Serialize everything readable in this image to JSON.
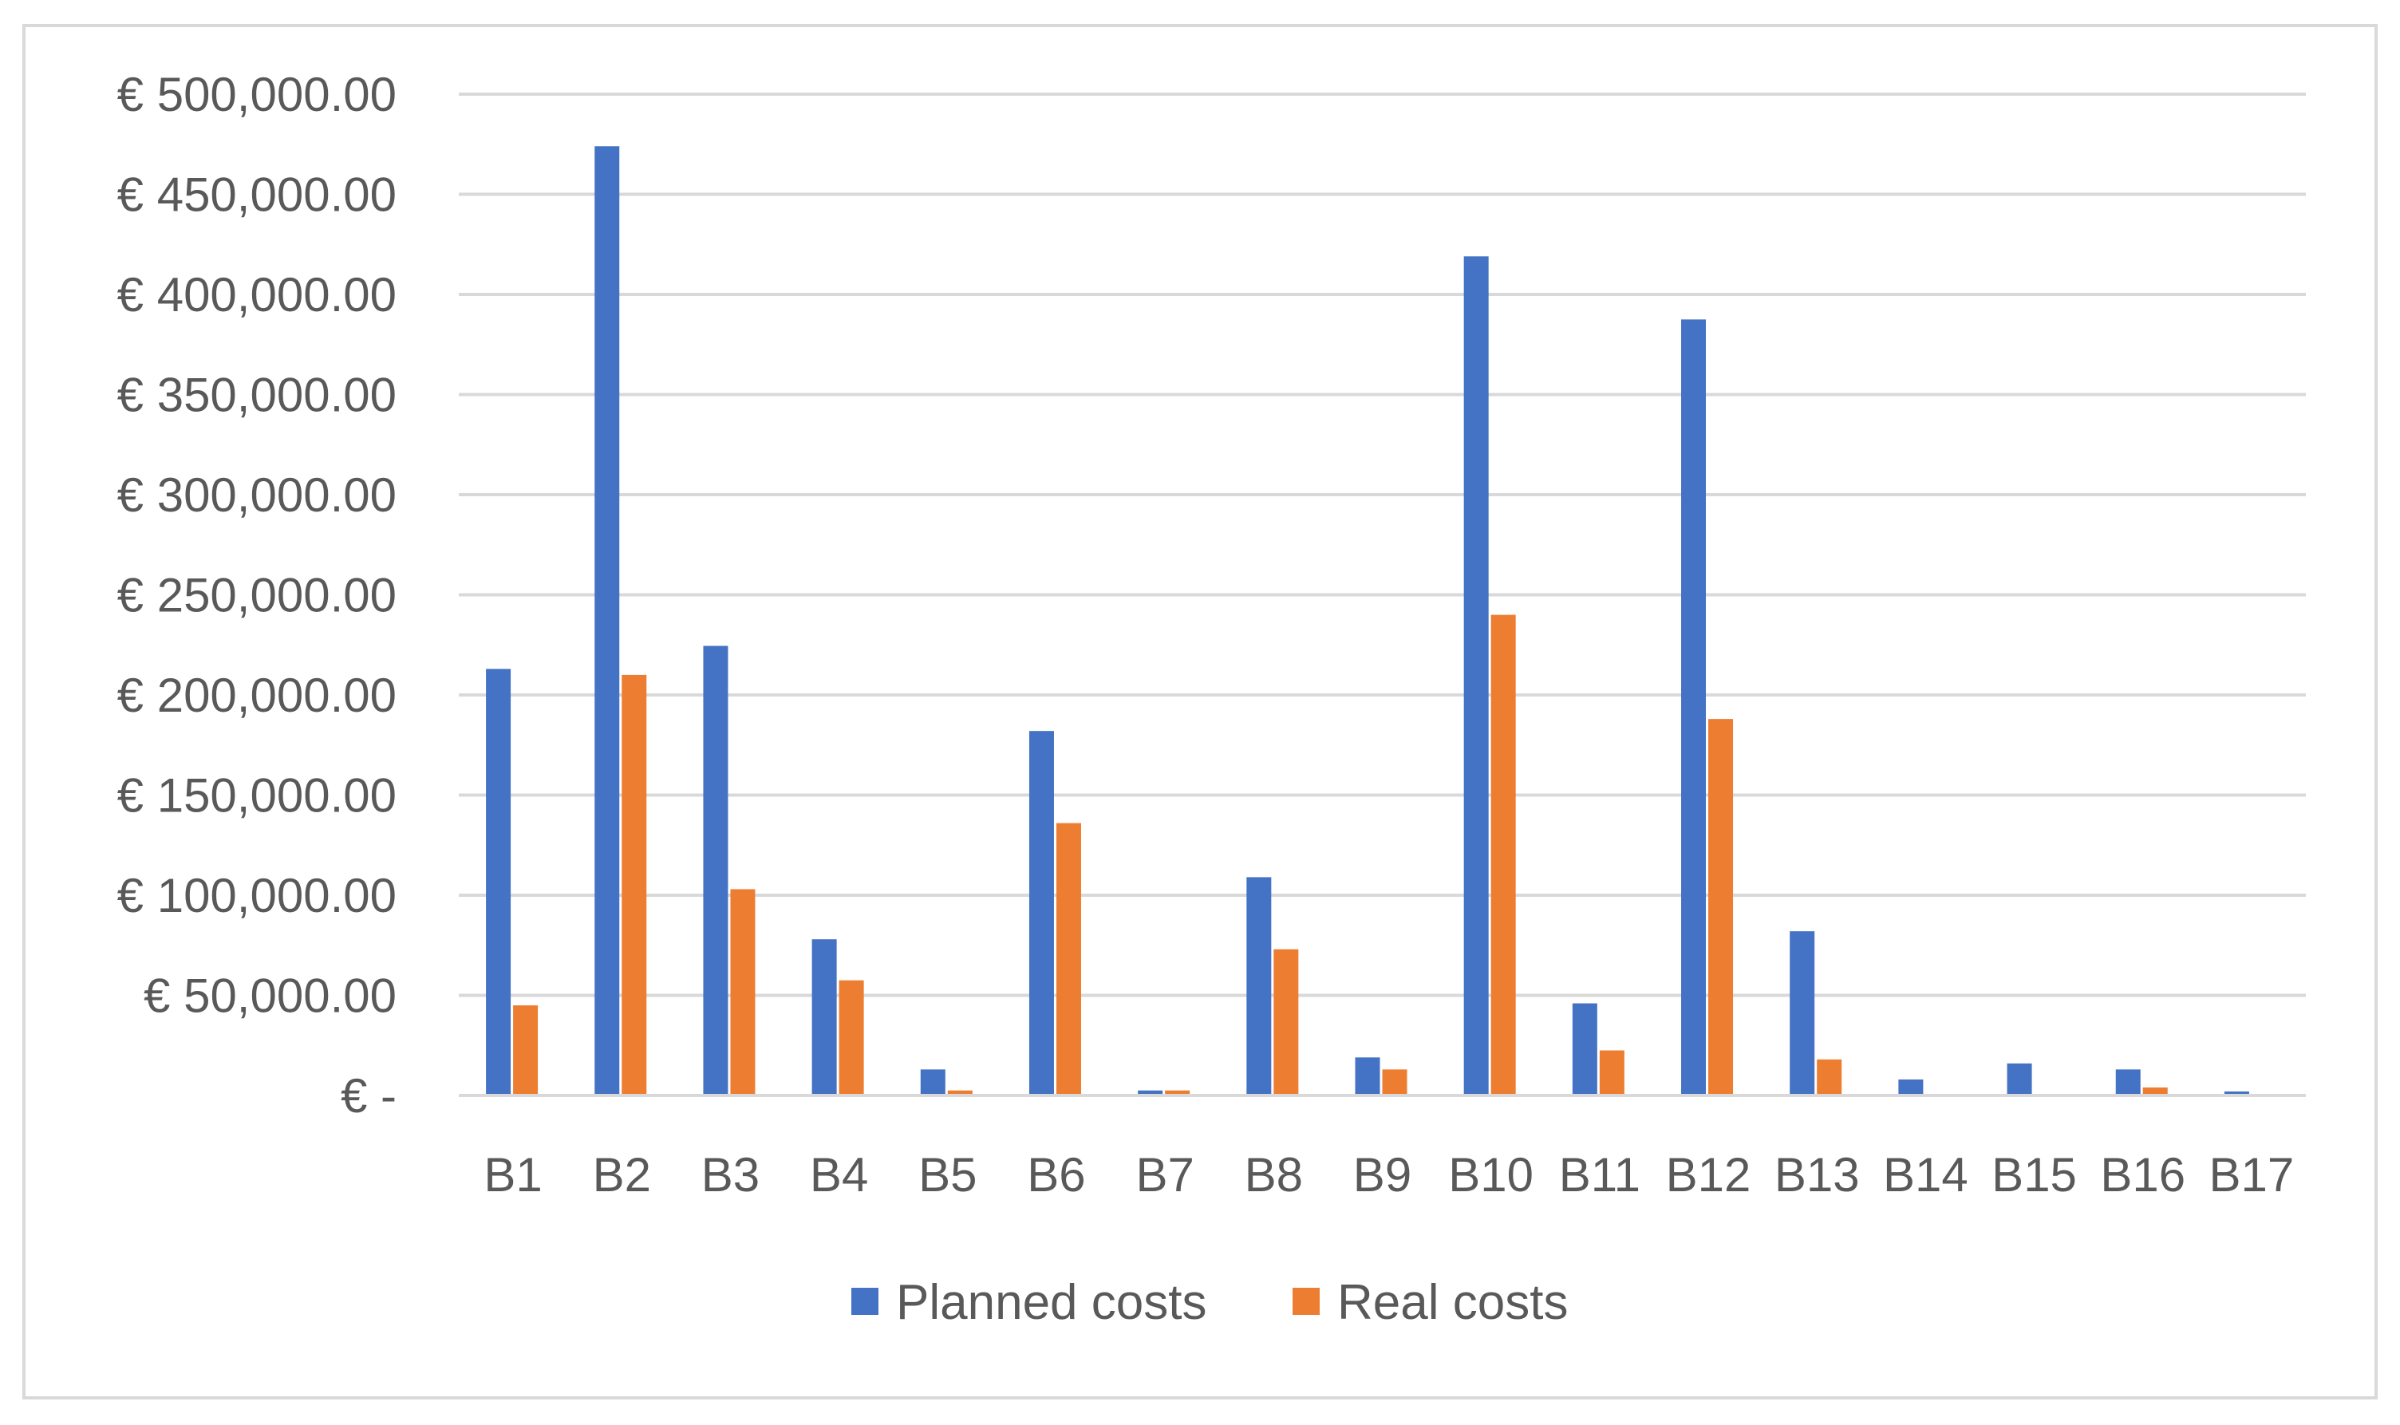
{
  "chart_data": {
    "type": "bar",
    "title": "",
    "xlabel": "",
    "ylabel": "",
    "categories": [
      "B1",
      "B2",
      "B3",
      "B4",
      "B5",
      "B6",
      "B7",
      "B8",
      "B9",
      "B10",
      "B11",
      "B12",
      "B13",
      "B14",
      "B15",
      "B16",
      "B17"
    ],
    "series": [
      {
        "name": "Planned costs",
        "color": "#4472C4",
        "values": [
          213000,
          474000,
          224500,
          78000,
          13000,
          182000,
          2500,
          109000,
          19000,
          419000,
          46000,
          387500,
          82000,
          8000,
          16000,
          13000,
          2000
        ]
      },
      {
        "name": "Real costs",
        "color": "#ED7D31",
        "values": [
          45000,
          210000,
          103000,
          57500,
          2500,
          136000,
          2500,
          73000,
          13000,
          240000,
          22500,
          188000,
          18000,
          0,
          0,
          4000,
          0
        ]
      }
    ],
    "ylim": [
      0,
      500000
    ],
    "yticks": [
      {
        "value": 500000,
        "label": "€ 500,000.00"
      },
      {
        "value": 450000,
        "label": "€ 450,000.00"
      },
      {
        "value": 400000,
        "label": "€ 400,000.00"
      },
      {
        "value": 350000,
        "label": "€ 350,000.00"
      },
      {
        "value": 300000,
        "label": "€ 300,000.00"
      },
      {
        "value": 250000,
        "label": "€ 250,000.00"
      },
      {
        "value": 200000,
        "label": "€ 200,000.00"
      },
      {
        "value": 150000,
        "label": "€ 150,000.00"
      },
      {
        "value": 100000,
        "label": "€ 100,000.00"
      },
      {
        "value": 50000,
        "label": "€ 50,000.00"
      },
      {
        "value": 0,
        "label": "€ -"
      }
    ],
    "grid": true,
    "legend": "bottom-center"
  }
}
